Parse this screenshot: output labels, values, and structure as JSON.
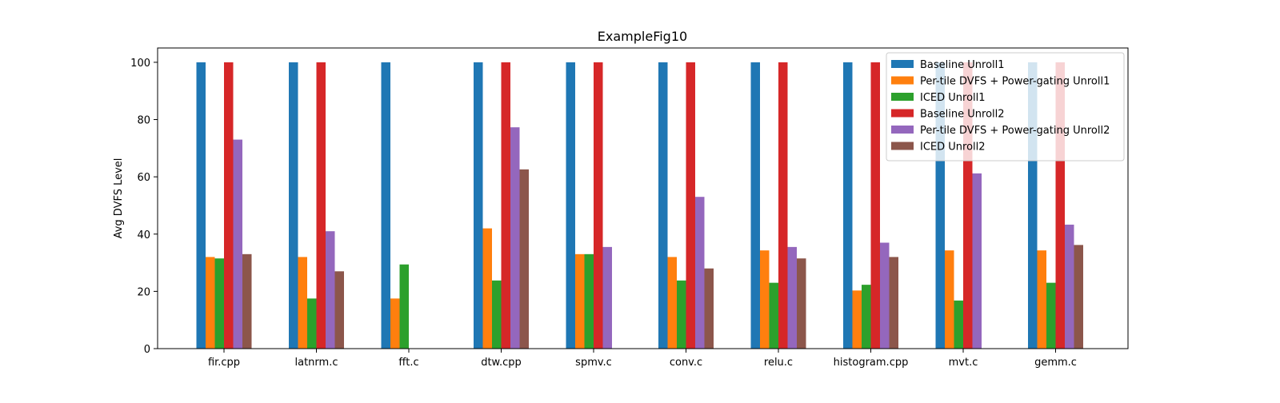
{
  "chart_data": {
    "type": "bar",
    "title": "ExampleFig10",
    "xlabel": "",
    "ylabel": "Avg DVFS Level",
    "ylim": [
      0,
      105
    ],
    "yticks": [
      0,
      20,
      40,
      60,
      80,
      100
    ],
    "grid": false,
    "legend_position": "top-right",
    "categories": [
      "fir.cpp",
      "latnrm.c",
      "fft.c",
      "dtw.cpp",
      "spmv.c",
      "conv.c",
      "relu.c",
      "histogram.cpp",
      "mvt.c",
      "gemm.c"
    ],
    "series": [
      {
        "name": "Baseline Unroll1",
        "color": "#1f77b4",
        "values": [
          100,
          100,
          100,
          100,
          100,
          100,
          100,
          100,
          100,
          100
        ]
      },
      {
        "name": "Per-tile DVFS + Power-gating Unroll1",
        "color": "#ff7f0e",
        "values": [
          32,
          32,
          17.5,
          42,
          33,
          32,
          34.3,
          20.3,
          34.3,
          34.3
        ]
      },
      {
        "name": "ICED Unroll1",
        "color": "#2ca02c",
        "values": [
          31.5,
          17.5,
          29.4,
          23.8,
          33,
          23.8,
          23,
          22.3,
          16.8,
          23
        ]
      },
      {
        "name": "Baseline Unroll2",
        "color": "#d62728",
        "values": [
          100,
          100,
          0,
          100,
          100,
          100,
          100,
          100,
          100,
          100
        ]
      },
      {
        "name": "Per-tile DVFS + Power-gating Unroll2",
        "color": "#9467bd",
        "values": [
          73,
          41,
          0,
          77.3,
          35.5,
          53,
          35.5,
          37,
          61.2,
          43.3
        ]
      },
      {
        "name": "ICED Unroll2",
        "color": "#8c564b",
        "values": [
          33,
          27,
          0,
          62.6,
          0,
          28,
          31.5,
          32,
          0,
          36.2
        ]
      }
    ]
  }
}
